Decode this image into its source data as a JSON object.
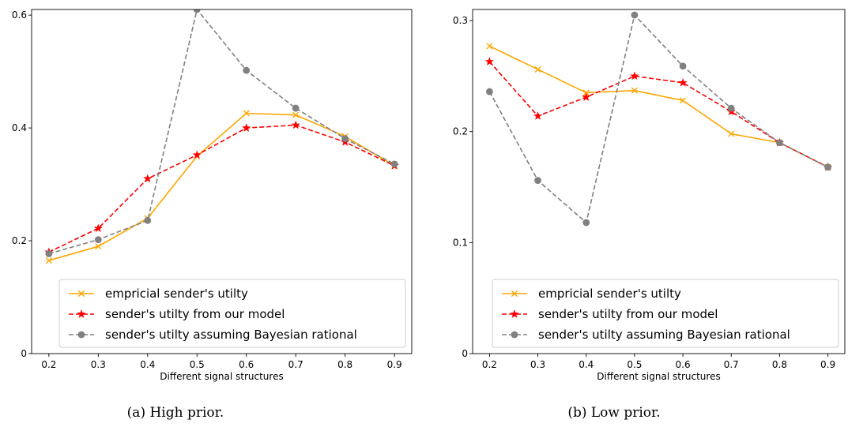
{
  "chart_data": [
    {
      "type": "line",
      "caption": "(a) High prior.",
      "xlabel": "Different signal structures",
      "x": [
        0.2,
        0.3,
        0.4,
        0.5,
        0.6,
        0.7,
        0.8,
        0.9
      ],
      "xticks": [
        "0.2",
        "0.3",
        "0.4",
        "0.5",
        "0.6",
        "0.7",
        "0.8",
        "0.9"
      ],
      "yticks": [
        0,
        0.2,
        0.4,
        0.6
      ],
      "ytick_labels": [
        "0",
        "0.2",
        "0.4",
        "0.6"
      ],
      "ylim": [
        0,
        0.61
      ],
      "legend_position": "lower-right",
      "series": [
        {
          "name": "empricial sender's utilty",
          "color": "#FFA500",
          "style": "solid",
          "marker": "x",
          "values": [
            0.165,
            0.19,
            0.24,
            0.35,
            0.426,
            0.423,
            0.385,
            0.333
          ]
        },
        {
          "name": "sender's utilty from our model",
          "color": "#FF0000",
          "style": "dashed",
          "marker": "star",
          "values": [
            0.18,
            0.222,
            0.31,
            0.352,
            0.4,
            0.405,
            0.375,
            0.333
          ]
        },
        {
          "name": "sender's utilty assuming Bayesian rational",
          "color": "#808080",
          "style": "dashed",
          "marker": "circle",
          "values": [
            0.177,
            0.202,
            0.236,
            0.61,
            0.502,
            0.435,
            0.381,
            0.336
          ]
        }
      ]
    },
    {
      "type": "line",
      "caption": "(b) Low prior.",
      "xlabel": "Different signal structures",
      "x": [
        0.2,
        0.3,
        0.4,
        0.5,
        0.6,
        0.7,
        0.8,
        0.9
      ],
      "xticks": [
        "0.2",
        "0.3",
        "0.4",
        "0.5",
        "0.6",
        "0.7",
        "0.8",
        "0.9"
      ],
      "yticks": [
        0,
        0.1,
        0.2,
        0.3
      ],
      "ytick_labels": [
        "0",
        "0.1",
        "0.2",
        "0.3"
      ],
      "ylim": [
        0,
        0.31
      ],
      "legend_position": "lower-right",
      "series": [
        {
          "name": "empricial sender's utilty",
          "color": "#FFA500",
          "style": "solid",
          "marker": "x",
          "values": [
            0.277,
            0.256,
            0.235,
            0.237,
            0.228,
            0.198,
            0.19,
            0.168
          ]
        },
        {
          "name": "sender's utilty from our model",
          "color": "#FF0000",
          "style": "dashed",
          "marker": "star",
          "values": [
            0.263,
            0.214,
            0.231,
            0.25,
            0.244,
            0.218,
            0.19,
            0.168
          ]
        },
        {
          "name": "sender's utilty assuming Bayesian rational",
          "color": "#808080",
          "style": "dashed",
          "marker": "circle",
          "values": [
            0.236,
            0.156,
            0.118,
            0.305,
            0.259,
            0.221,
            0.19,
            0.168
          ]
        }
      ]
    }
  ]
}
